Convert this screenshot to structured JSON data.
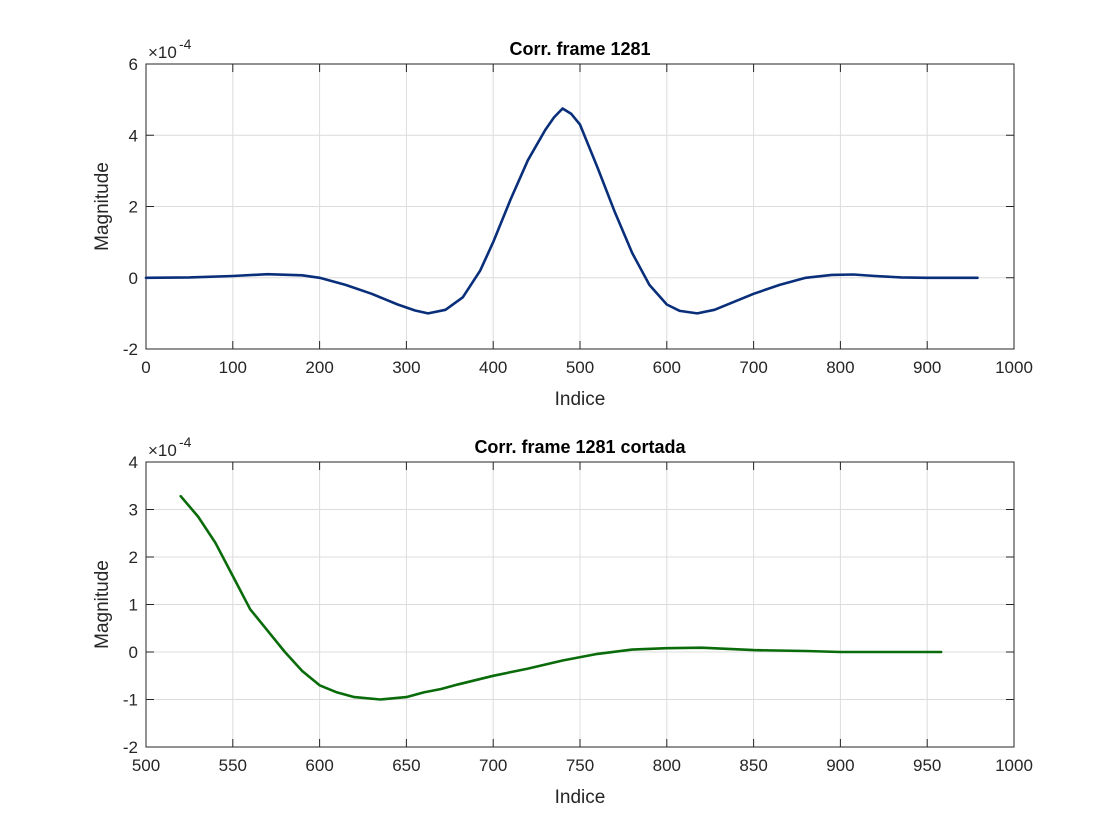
{
  "chart_data": [
    {
      "type": "line",
      "title": "Corr. frame 1281",
      "xlabel": "Indice",
      "ylabel": "Magnitude",
      "exponent_label": "×10",
      "exponent_power": "-4",
      "xlim": [
        0,
        1000
      ],
      "ylim": [
        -2,
        6
      ],
      "xticks": [
        0,
        100,
        200,
        300,
        400,
        500,
        600,
        700,
        800,
        900,
        1000
      ],
      "yticks": [
        -2,
        0,
        2,
        4,
        6
      ],
      "grid": true,
      "color": "#0a2f7a",
      "x": [
        0,
        50,
        100,
        140,
        180,
        200,
        230,
        260,
        290,
        310,
        325,
        345,
        365,
        385,
        400,
        420,
        440,
        460,
        470,
        480,
        490,
        500,
        520,
        540,
        560,
        580,
        600,
        615,
        635,
        655,
        680,
        700,
        730,
        760,
        790,
        815,
        840,
        870,
        900,
        930,
        958
      ],
      "y": [
        0.0,
        0.01,
        0.05,
        0.1,
        0.07,
        0.0,
        -0.2,
        -0.45,
        -0.75,
        -0.92,
        -1.0,
        -0.9,
        -0.55,
        0.2,
        1.0,
        2.2,
        3.3,
        4.15,
        4.5,
        4.75,
        4.6,
        4.3,
        3.1,
        1.85,
        0.7,
        -0.2,
        -0.75,
        -0.93,
        -1.0,
        -0.9,
        -0.65,
        -0.45,
        -0.2,
        0.0,
        0.08,
        0.09,
        0.05,
        0.01,
        0.0,
        0.0,
        0.0
      ]
    },
    {
      "type": "line",
      "title": "Corr. frame 1281 cortada",
      "xlabel": "Indice",
      "ylabel": "Magnitude",
      "exponent_label": "×10",
      "exponent_power": "-4",
      "xlim": [
        500,
        1000
      ],
      "ylim": [
        -2,
        4
      ],
      "xticks": [
        500,
        550,
        600,
        650,
        700,
        750,
        800,
        850,
        900,
        950,
        1000
      ],
      "yticks": [
        -2,
        -1,
        0,
        1,
        2,
        3,
        4
      ],
      "grid": true,
      "color": "#0a6b0a",
      "x": [
        520,
        530,
        540,
        550,
        560,
        570,
        580,
        590,
        600,
        610,
        620,
        635,
        650,
        660,
        670,
        680,
        700,
        720,
        740,
        760,
        780,
        800,
        820,
        850,
        880,
        900,
        930,
        958
      ],
      "y": [
        3.28,
        2.85,
        2.3,
        1.6,
        0.9,
        0.45,
        0.0,
        -0.4,
        -0.7,
        -0.85,
        -0.95,
        -1.0,
        -0.95,
        -0.85,
        -0.78,
        -0.68,
        -0.5,
        -0.35,
        -0.18,
        -0.04,
        0.05,
        0.08,
        0.09,
        0.04,
        0.02,
        0.0,
        0.0,
        0.0
      ]
    }
  ]
}
